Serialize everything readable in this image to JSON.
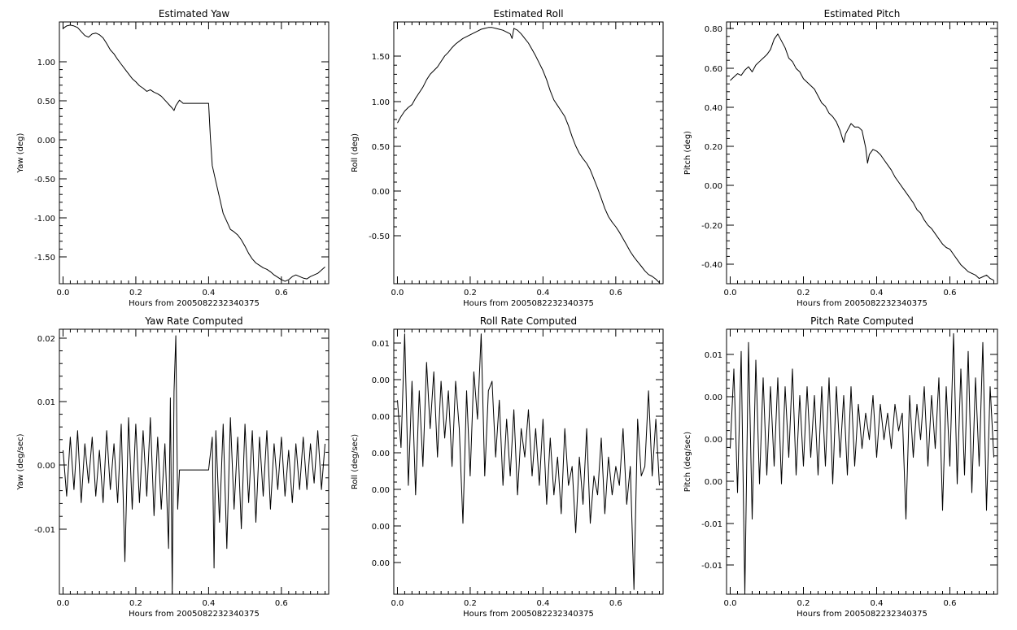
{
  "chart_data": [
    {
      "type": "line",
      "title": "Estimated Yaw",
      "xlabel": "Hours from 2005082232340375",
      "ylabel": "Yaw (deg)",
      "xlim": [
        -0.01,
        0.73
      ],
      "ylim": [
        -1.83,
        1.45
      ],
      "xticks": [
        "0.0",
        "0.2",
        "0.4",
        "0.6"
      ],
      "yticks": [
        "1.00",
        "0.50",
        "0.00",
        "-0.50",
        "-1.00",
        "-1.50"
      ],
      "series": [
        {
          "x": [
            0.0,
            0.01,
            0.02,
            0.03,
            0.04,
            0.05,
            0.06,
            0.07,
            0.08,
            0.09,
            0.1,
            0.11,
            0.12,
            0.13,
            0.14,
            0.15,
            0.16,
            0.17,
            0.18,
            0.19,
            0.2,
            0.21,
            0.22,
            0.23,
            0.24,
            0.25,
            0.26,
            0.27,
            0.28,
            0.29,
            0.3,
            0.305,
            0.31,
            0.32,
            0.33,
            0.34,
            0.35,
            0.36,
            0.37,
            0.38,
            0.39,
            0.4,
            0.405,
            0.41,
            0.42,
            0.43,
            0.44,
            0.45,
            0.46,
            0.47,
            0.48,
            0.49,
            0.5,
            0.51,
            0.52,
            0.53,
            0.54,
            0.55,
            0.56,
            0.57,
            0.58,
            0.59,
            0.6,
            0.61,
            0.62,
            0.63,
            0.64,
            0.65,
            0.66,
            0.67,
            0.68,
            0.69,
            0.7,
            0.71,
            0.72
          ],
          "y": [
            1.37,
            1.4,
            1.41,
            1.4,
            1.38,
            1.33,
            1.28,
            1.26,
            1.3,
            1.31,
            1.29,
            1.25,
            1.18,
            1.1,
            1.05,
            0.98,
            0.92,
            0.86,
            0.8,
            0.74,
            0.7,
            0.65,
            0.62,
            0.58,
            0.6,
            0.57,
            0.55,
            0.52,
            0.47,
            0.42,
            0.37,
            0.34,
            0.4,
            0.47,
            0.43,
            0.43,
            0.43,
            0.43,
            0.43,
            0.43,
            0.43,
            0.43,
            0.0,
            -0.35,
            -0.55,
            -0.75,
            -0.95,
            -1.05,
            -1.15,
            -1.18,
            -1.22,
            -1.28,
            -1.36,
            -1.45,
            -1.52,
            -1.57,
            -1.6,
            -1.63,
            -1.65,
            -1.68,
            -1.72,
            -1.75,
            -1.78,
            -1.8,
            -1.78,
            -1.74,
            -1.72,
            -1.74,
            -1.76,
            -1.77,
            -1.74,
            -1.72,
            -1.7,
            -1.66,
            -1.62
          ]
        }
      ]
    },
    {
      "type": "line",
      "title": "Estimated Roll",
      "xlabel": "Hours from 2005082232340375",
      "ylabel": "Roll (deg)",
      "xlim": [
        -0.01,
        0.73
      ],
      "ylim": [
        -1.0,
        1.85
      ],
      "xticks": [
        "0.0",
        "0.2",
        "0.4",
        "0.6"
      ],
      "yticks": [
        "1.50",
        "1.00",
        "0.50",
        "0.00",
        "-0.50"
      ],
      "series": [
        {
          "x": [
            0.0,
            0.01,
            0.02,
            0.03,
            0.04,
            0.05,
            0.06,
            0.07,
            0.08,
            0.09,
            0.1,
            0.11,
            0.12,
            0.13,
            0.14,
            0.15,
            0.16,
            0.17,
            0.18,
            0.19,
            0.2,
            0.21,
            0.22,
            0.23,
            0.24,
            0.25,
            0.26,
            0.27,
            0.28,
            0.29,
            0.3,
            0.31,
            0.315,
            0.32,
            0.33,
            0.34,
            0.35,
            0.36,
            0.37,
            0.38,
            0.39,
            0.4,
            0.41,
            0.42,
            0.43,
            0.44,
            0.45,
            0.46,
            0.47,
            0.48,
            0.49,
            0.5,
            0.51,
            0.52,
            0.53,
            0.54,
            0.55,
            0.56,
            0.57,
            0.58,
            0.59,
            0.6,
            0.61,
            0.62,
            0.63,
            0.64,
            0.65,
            0.66,
            0.67,
            0.68,
            0.69,
            0.7,
            0.71,
            0.72
          ],
          "y": [
            0.75,
            0.82,
            0.88,
            0.92,
            0.95,
            1.02,
            1.08,
            1.14,
            1.22,
            1.28,
            1.32,
            1.36,
            1.42,
            1.48,
            1.52,
            1.57,
            1.61,
            1.64,
            1.67,
            1.69,
            1.71,
            1.73,
            1.75,
            1.77,
            1.78,
            1.79,
            1.79,
            1.78,
            1.77,
            1.76,
            1.74,
            1.72,
            1.67,
            1.78,
            1.76,
            1.72,
            1.67,
            1.62,
            1.55,
            1.48,
            1.4,
            1.32,
            1.22,
            1.1,
            1.0,
            0.94,
            0.88,
            0.82,
            0.72,
            0.6,
            0.5,
            0.42,
            0.36,
            0.31,
            0.24,
            0.14,
            0.04,
            -0.07,
            -0.18,
            -0.27,
            -0.33,
            -0.38,
            -0.44,
            -0.51,
            -0.58,
            -0.65,
            -0.71,
            -0.76,
            -0.81,
            -0.86,
            -0.9,
            -0.92,
            -0.95,
            -0.99
          ]
        }
      ]
    },
    {
      "type": "line",
      "title": "Estimated Pitch",
      "xlabel": "Hours from 2005082232340375",
      "ylabel": "Pitch (deg)",
      "xlim": [
        -0.01,
        0.73
      ],
      "ylim": [
        -0.69,
        0.83
      ],
      "xticks": [
        "0.0",
        "0.2",
        "0.4",
        "0.6"
      ],
      "yticks": [
        "0.80",
        "0.60",
        "0.40",
        "0.20",
        "0.00",
        "-0.20",
        "-0.40",
        "-0.60"
      ],
      "series": [
        {
          "x": [
            0.0,
            0.01,
            0.02,
            0.03,
            0.04,
            0.05,
            0.06,
            0.07,
            0.08,
            0.09,
            0.1,
            0.11,
            0.12,
            0.13,
            0.14,
            0.15,
            0.16,
            0.17,
            0.18,
            0.19,
            0.2,
            0.21,
            0.22,
            0.23,
            0.24,
            0.25,
            0.26,
            0.27,
            0.28,
            0.29,
            0.3,
            0.31,
            0.315,
            0.32,
            0.33,
            0.34,
            0.35,
            0.36,
            0.37,
            0.375,
            0.38,
            0.39,
            0.4,
            0.41,
            0.42,
            0.43,
            0.44,
            0.45,
            0.46,
            0.47,
            0.48,
            0.49,
            0.5,
            0.51,
            0.52,
            0.53,
            0.54,
            0.55,
            0.56,
            0.57,
            0.58,
            0.59,
            0.6,
            0.61,
            0.62,
            0.63,
            0.64,
            0.65,
            0.66,
            0.67,
            0.68,
            0.69,
            0.7,
            0.71,
            0.72
          ],
          "y": [
            0.49,
            0.51,
            0.53,
            0.52,
            0.55,
            0.57,
            0.54,
            0.58,
            0.6,
            0.62,
            0.64,
            0.67,
            0.73,
            0.76,
            0.72,
            0.68,
            0.62,
            0.6,
            0.56,
            0.54,
            0.5,
            0.48,
            0.46,
            0.44,
            0.4,
            0.36,
            0.34,
            0.3,
            0.28,
            0.25,
            0.2,
            0.13,
            0.18,
            0.2,
            0.24,
            0.22,
            0.22,
            0.2,
            0.1,
            0.01,
            0.06,
            0.09,
            0.08,
            0.06,
            0.03,
            0.0,
            -0.03,
            -0.07,
            -0.1,
            -0.13,
            -0.16,
            -0.19,
            -0.22,
            -0.26,
            -0.28,
            -0.32,
            -0.35,
            -0.37,
            -0.4,
            -0.43,
            -0.46,
            -0.48,
            -0.49,
            -0.52,
            -0.55,
            -0.58,
            -0.6,
            -0.62,
            -0.63,
            -0.64,
            -0.66,
            -0.65,
            -0.64,
            -0.66,
            -0.67
          ]
        }
      ]
    },
    {
      "type": "line",
      "title": "Yaw Rate Computed",
      "xlabel": "Hours from 2005082232340375",
      "ylabel": "Yaw (deg/sec)",
      "xlim": [
        -0.01,
        0.73
      ],
      "ylim": [
        -0.019,
        0.0215
      ],
      "xticks": [
        "0.0",
        "0.2",
        "0.4",
        "0.6"
      ],
      "yticks": [
        "0.02",
        "0.01",
        "0.00",
        "-0.01"
      ],
      "series": [
        {
          "x": [
            0.0,
            0.01,
            0.02,
            0.03,
            0.04,
            0.05,
            0.06,
            0.07,
            0.08,
            0.09,
            0.1,
            0.11,
            0.12,
            0.13,
            0.14,
            0.15,
            0.16,
            0.17,
            0.18,
            0.19,
            0.2,
            0.21,
            0.22,
            0.23,
            0.24,
            0.25,
            0.26,
            0.27,
            0.28,
            0.29,
            0.295,
            0.3,
            0.305,
            0.31,
            0.315,
            0.32,
            0.4,
            0.41,
            0.415,
            0.42,
            0.43,
            0.44,
            0.45,
            0.46,
            0.47,
            0.48,
            0.49,
            0.5,
            0.51,
            0.52,
            0.53,
            0.54,
            0.55,
            0.56,
            0.57,
            0.58,
            0.59,
            0.6,
            0.61,
            0.62,
            0.63,
            0.64,
            0.65,
            0.66,
            0.67,
            0.68,
            0.69,
            0.7,
            0.71,
            0.72
          ],
          "y": [
            0.003,
            -0.004,
            0.005,
            -0.003,
            0.006,
            -0.005,
            0.004,
            -0.002,
            0.005,
            -0.004,
            0.003,
            -0.005,
            0.006,
            -0.003,
            0.004,
            -0.005,
            0.007,
            -0.014,
            0.008,
            -0.006,
            0.007,
            -0.005,
            0.006,
            -0.004,
            0.008,
            -0.007,
            0.005,
            -0.006,
            0.004,
            -0.012,
            0.011,
            -0.019,
            0.012,
            0.0205,
            -0.006,
            0.0,
            0.0,
            0.005,
            -0.015,
            0.006,
            -0.008,
            0.007,
            -0.012,
            0.008,
            -0.006,
            0.005,
            -0.009,
            0.007,
            -0.005,
            0.006,
            -0.008,
            0.005,
            -0.004,
            0.006,
            -0.006,
            0.004,
            -0.003,
            0.005,
            -0.004,
            0.003,
            -0.005,
            0.004,
            -0.003,
            0.005,
            -0.003,
            0.004,
            -0.002,
            0.006,
            -0.003,
            0.004
          ]
        }
      ]
    },
    {
      "type": "line",
      "title": "Roll Rate Computed",
      "xlabel": "Hours from 2005082232340375",
      "ylabel": "Roll (deg/sec)",
      "xlim": [
        -0.01,
        0.73
      ],
      "ylim": [
        -0.0165,
        0.0115
      ],
      "xticks": [
        "0.0",
        "0.2",
        "0.4",
        "0.6"
      ],
      "yticks": [
        "0.01",
        "0.00",
        "0.00",
        "0.00",
        "0.00",
        "0.00",
        "0.00",
        "-0.01"
      ],
      "series": [
        {
          "x": [
            0.0,
            0.01,
            0.02,
            0.03,
            0.04,
            0.05,
            0.06,
            0.07,
            0.08,
            0.09,
            0.1,
            0.11,
            0.12,
            0.13,
            0.14,
            0.15,
            0.16,
            0.17,
            0.18,
            0.19,
            0.2,
            0.21,
            0.22,
            0.23,
            0.24,
            0.25,
            0.26,
            0.27,
            0.28,
            0.29,
            0.3,
            0.31,
            0.32,
            0.33,
            0.34,
            0.35,
            0.36,
            0.37,
            0.38,
            0.39,
            0.4,
            0.41,
            0.42,
            0.43,
            0.44,
            0.45,
            0.46,
            0.47,
            0.48,
            0.49,
            0.5,
            0.51,
            0.52,
            0.53,
            0.54,
            0.55,
            0.56,
            0.57,
            0.58,
            0.59,
            0.6,
            0.61,
            0.62,
            0.63,
            0.64,
            0.65,
            0.66,
            0.67,
            0.68,
            0.69,
            0.7,
            0.71,
            0.72
          ],
          "y": [
            0.004,
            -0.001,
            0.011,
            -0.005,
            0.006,
            -0.006,
            0.005,
            -0.003,
            0.008,
            0.001,
            0.007,
            -0.002,
            0.006,
            0.0,
            0.005,
            -0.003,
            0.006,
            0.001,
            -0.009,
            0.005,
            -0.004,
            0.007,
            0.002,
            0.011,
            -0.004,
            0.005,
            0.006,
            -0.002,
            0.004,
            -0.005,
            0.002,
            -0.004,
            0.003,
            -0.006,
            0.001,
            -0.002,
            0.003,
            -0.004,
            0.001,
            -0.005,
            0.002,
            -0.007,
            0.0,
            -0.006,
            -0.002,
            -0.008,
            0.001,
            -0.005,
            -0.003,
            -0.01,
            -0.002,
            -0.007,
            0.001,
            -0.009,
            -0.004,
            -0.006,
            0.0,
            -0.008,
            -0.002,
            -0.006,
            -0.003,
            -0.005,
            0.001,
            -0.007,
            -0.003,
            -0.016,
            0.002,
            -0.004,
            -0.003,
            0.005,
            -0.004,
            0.002,
            -0.005
          ]
        }
      ]
    },
    {
      "type": "line",
      "title": "Pitch Rate Computed",
      "xlabel": "Hours from 2005082232340375",
      "ylabel": "Pitch (deg/sec)",
      "xlim": [
        -0.01,
        0.73
      ],
      "ylim": [
        -0.0175,
        0.0125
      ],
      "xticks": [
        "0.0",
        "0.2",
        "0.4",
        "0.6"
      ],
      "yticks": [
        "0.01",
        "0.00",
        "0.00",
        "0.00",
        "-0.01",
        "-0.01"
      ],
      "series": [
        {
          "x": [
            0.0,
            0.01,
            0.02,
            0.03,
            0.04,
            0.05,
            0.06,
            0.07,
            0.08,
            0.09,
            0.1,
            0.11,
            0.12,
            0.13,
            0.14,
            0.15,
            0.16,
            0.17,
            0.18,
            0.19,
            0.2,
            0.21,
            0.22,
            0.23,
            0.24,
            0.25,
            0.26,
            0.27,
            0.28,
            0.29,
            0.3,
            0.31,
            0.32,
            0.33,
            0.34,
            0.35,
            0.36,
            0.37,
            0.38,
            0.39,
            0.4,
            0.41,
            0.42,
            0.43,
            0.44,
            0.45,
            0.46,
            0.47,
            0.48,
            0.49,
            0.5,
            0.51,
            0.52,
            0.53,
            0.54,
            0.55,
            0.56,
            0.57,
            0.58,
            0.59,
            0.6,
            0.61,
            0.62,
            0.63,
            0.64,
            0.65,
            0.66,
            0.67,
            0.68,
            0.69,
            0.7,
            0.71,
            0.72
          ],
          "y": [
            -0.001,
            0.008,
            -0.006,
            0.01,
            -0.0175,
            0.011,
            -0.009,
            0.009,
            -0.005,
            0.007,
            -0.004,
            0.006,
            -0.003,
            0.007,
            -0.005,
            0.006,
            -0.002,
            0.008,
            -0.004,
            0.005,
            -0.003,
            0.006,
            -0.002,
            0.005,
            -0.004,
            0.006,
            -0.003,
            0.007,
            -0.005,
            0.006,
            -0.002,
            0.005,
            -0.004,
            0.006,
            -0.003,
            0.004,
            -0.001,
            0.003,
            0.0,
            0.005,
            -0.002,
            0.004,
            0.0,
            0.003,
            -0.001,
            0.004,
            0.001,
            0.003,
            -0.009,
            0.005,
            -0.002,
            0.004,
            0.0,
            0.006,
            -0.003,
            0.005,
            -0.001,
            0.007,
            -0.008,
            0.006,
            -0.003,
            0.012,
            -0.005,
            0.008,
            -0.004,
            0.01,
            -0.006,
            0.007,
            -0.003,
            0.011,
            -0.008,
            0.006,
            -0.002
          ]
        }
      ]
    }
  ]
}
